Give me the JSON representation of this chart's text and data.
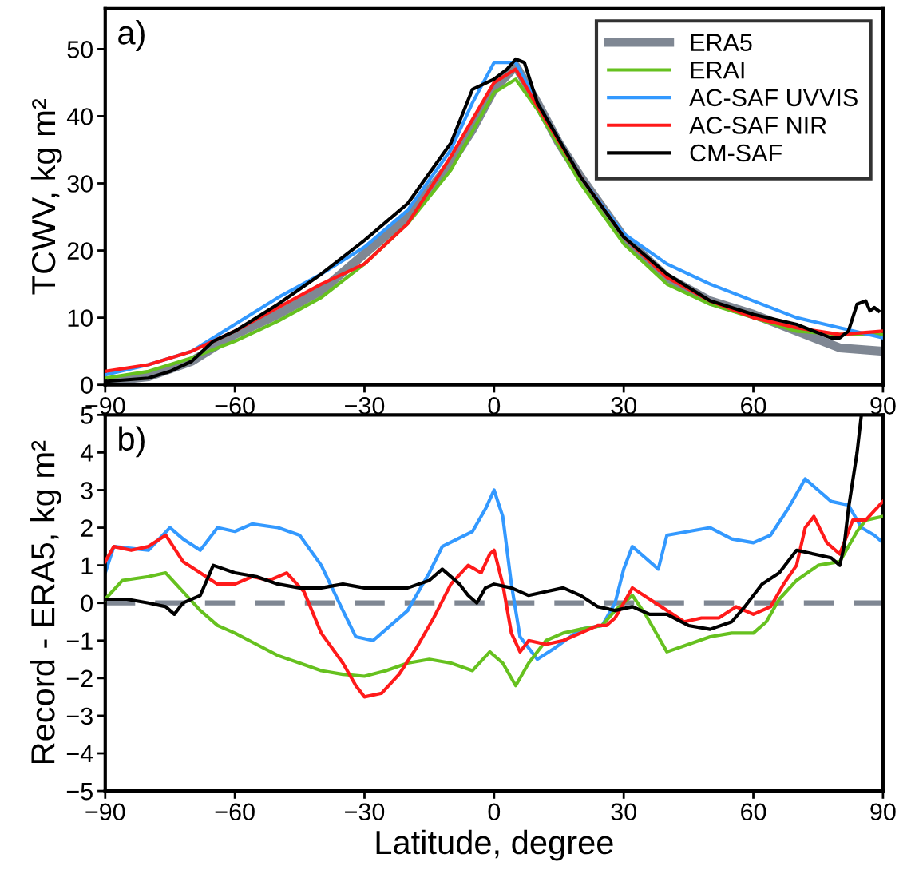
{
  "chart_data": [
    {
      "type": "line",
      "annotations": [
        "a)"
      ],
      "ylabel": "TCWV, kg m²",
      "xlim": [
        -90,
        90
      ],
      "xticks": [
        -90,
        -60,
        -30,
        0,
        30,
        60,
        90
      ],
      "ylim": [
        0,
        56
      ],
      "yticks": [
        0,
        10,
        20,
        30,
        40,
        50
      ],
      "grid": false,
      "legend": "top right",
      "line_style": "solid",
      "marker": "none",
      "series": [
        {
          "name": "ERA5",
          "color": "#7f8793",
          "x": [
            -90,
            -80,
            -70,
            -60,
            -50,
            -40,
            -30,
            -20,
            -10,
            -5,
            0,
            5,
            10,
            15,
            20,
            30,
            40,
            50,
            60,
            70,
            80,
            90
          ],
          "values": [
            0.5,
            1.2,
            3.5,
            7.5,
            10.5,
            14,
            19.5,
            25,
            33,
            38,
            44,
            47.5,
            42,
            36,
            31,
            22,
            16,
            12.5,
            10.5,
            8,
            5.5,
            5
          ]
        },
        {
          "name": "ERAI",
          "color": "#66c11f",
          "x": [
            -90,
            -80,
            -70,
            -60,
            -50,
            -40,
            -30,
            -20,
            -10,
            0,
            5,
            10,
            20,
            30,
            40,
            50,
            60,
            70,
            80,
            90
          ],
          "values": [
            1,
            2,
            4,
            6.5,
            9.5,
            13,
            18,
            24,
            32,
            43.5,
            45.5,
            41,
            30,
            21,
            15,
            12,
            10,
            8,
            7.5,
            7.5
          ]
        },
        {
          "name": "AC-SAF UVVIS",
          "color": "#3399ff",
          "x": [
            -90,
            -80,
            -70,
            -60,
            -50,
            -40,
            -30,
            -20,
            -10,
            -5,
            0,
            5,
            10,
            20,
            30,
            40,
            50,
            60,
            70,
            80,
            90
          ],
          "values": [
            1.5,
            3,
            5,
            9,
            13,
            16.5,
            20.5,
            26,
            35,
            42,
            48,
            48,
            42,
            31,
            22.5,
            18,
            15,
            12.5,
            10,
            8.5,
            7
          ]
        },
        {
          "name": "AC-SAF NIR",
          "color": "#ff1a1a",
          "x": [
            -90,
            -80,
            -70,
            -60,
            -50,
            -40,
            -30,
            -20,
            -10,
            0,
            5,
            10,
            20,
            30,
            40,
            50,
            60,
            70,
            80,
            90
          ],
          "values": [
            2,
            3,
            5,
            8,
            11.5,
            15,
            18,
            24,
            34,
            45,
            47,
            41.5,
            31,
            22,
            16,
            12.5,
            10,
            8.5,
            7.5,
            8
          ]
        },
        {
          "name": "CM-SAF",
          "color": "#000000",
          "x": [
            -90,
            -80,
            -75,
            -70,
            -65,
            -60,
            -50,
            -40,
            -30,
            -20,
            -10,
            -5,
            0,
            3,
            5,
            7,
            10,
            20,
            30,
            40,
            50,
            60,
            70,
            78,
            80,
            82,
            84,
            86,
            87,
            88,
            89
          ],
          "values": [
            0.5,
            1,
            2,
            3.5,
            6.5,
            8,
            12,
            16.5,
            21.5,
            27,
            36,
            44,
            45.5,
            47,
            48.5,
            48,
            42,
            31,
            22,
            16.5,
            12.5,
            10.5,
            9,
            7,
            7,
            8,
            12,
            12.5,
            11,
            11.5,
            11
          ]
        }
      ]
    },
    {
      "type": "line",
      "annotations": [
        "b)"
      ],
      "xlabel": "Latitude, degree",
      "ylabel": "Record - ERA5, kg m²",
      "xlim": [
        -90,
        90
      ],
      "xticks": [
        -90,
        -60,
        -30,
        0,
        30,
        60,
        90
      ],
      "ylim": [
        -5,
        5
      ],
      "yticks": [
        -5,
        -4,
        -3,
        -2,
        -1,
        0,
        1,
        2,
        3,
        4,
        5
      ],
      "grid": false,
      "line_style": "solid",
      "marker": "none",
      "ref_lines": [
        {
          "axis": "y",
          "value": 0,
          "color": "#7f8793",
          "line_style": "dashed"
        }
      ],
      "series": [
        {
          "color": "#3399ff",
          "x": [
            -90,
            -88,
            -80,
            -75,
            -72,
            -68,
            -64,
            -60,
            -56,
            -50,
            -45,
            -40,
            -35,
            -32,
            -28,
            -25,
            -20,
            -15,
            -12,
            -5,
            -2,
            0,
            2,
            4,
            6,
            10,
            14,
            20,
            25,
            28,
            30,
            32,
            35,
            38,
            40,
            45,
            50,
            55,
            60,
            64,
            68,
            72,
            75,
            78,
            82,
            85,
            88,
            90
          ],
          "values": [
            0.8,
            1.5,
            1.4,
            2,
            1.7,
            1.4,
            2,
            1.9,
            2.1,
            2,
            1.8,
            1,
            -0.2,
            -0.9,
            -1,
            -0.7,
            -0.2,
            0.8,
            1.5,
            1.9,
            2.5,
            3,
            2.3,
            0.5,
            -0.9,
            -1.5,
            -1.2,
            -0.7,
            -0.6,
            0,
            0.9,
            1.5,
            1.2,
            0.9,
            1.8,
            1.9,
            2,
            1.7,
            1.6,
            1.8,
            2.5,
            3.3,
            3,
            2.7,
            2.6,
            2,
            1.8,
            1.6
          ]
        },
        {
          "color": "#66c11f",
          "x": [
            -90,
            -86,
            -80,
            -76,
            -72,
            -68,
            -64,
            -60,
            -55,
            -50,
            -45,
            -40,
            -35,
            -30,
            -25,
            -20,
            -15,
            -10,
            -5,
            -1,
            2,
            5,
            8,
            12,
            16,
            20,
            25,
            28,
            32,
            35,
            38,
            40,
            45,
            50,
            55,
            60,
            63,
            66,
            70,
            75,
            80,
            84,
            86,
            90
          ],
          "values": [
            0.1,
            0.6,
            0.7,
            0.8,
            0.3,
            -0.2,
            -0.6,
            -0.8,
            -1.1,
            -1.4,
            -1.6,
            -1.8,
            -1.9,
            -1.95,
            -1.8,
            -1.6,
            -1.5,
            -1.6,
            -1.8,
            -1.3,
            -1.6,
            -2.2,
            -1.6,
            -1,
            -0.8,
            -0.7,
            -0.6,
            -0.2,
            0.2,
            -0.3,
            -0.9,
            -1.3,
            -1.1,
            -0.9,
            -0.8,
            -0.8,
            -0.5,
            0.1,
            0.6,
            1,
            1.1,
            1.9,
            2.2,
            2.3
          ]
        },
        {
          "color": "#ff1a1a",
          "x": [
            -90,
            -88,
            -84,
            -80,
            -76,
            -72,
            -68,
            -64,
            -60,
            -56,
            -52,
            -48,
            -44,
            -40,
            -35,
            -32,
            -30,
            -26,
            -22,
            -18,
            -14,
            -10,
            -6,
            -3,
            -1,
            0,
            2,
            4,
            6,
            8,
            12,
            16,
            20,
            24,
            26,
            28,
            30,
            32,
            36,
            40,
            44,
            48,
            52,
            56,
            60,
            64,
            67,
            70,
            72,
            74,
            77,
            80,
            83,
            86,
            90
          ],
          "values": [
            1.1,
            1.5,
            1.4,
            1.5,
            1.8,
            1.1,
            0.8,
            0.5,
            0.5,
            0.7,
            0.6,
            0.8,
            0.3,
            -0.8,
            -1.6,
            -2.2,
            -2.5,
            -2.4,
            -1.9,
            -1.2,
            -0.4,
            0.5,
            1,
            0.8,
            1.3,
            1.4,
            0.5,
            -0.8,
            -1.3,
            -1,
            -1.1,
            -1,
            -0.8,
            -0.6,
            -0.6,
            -0.4,
            0,
            0.4,
            0.1,
            -0.2,
            -0.5,
            -0.4,
            -0.4,
            -0.1,
            -0.3,
            -0.1,
            0.5,
            1,
            2,
            2.3,
            1.6,
            1.3,
            2.2,
            2.2,
            2.7
          ]
        },
        {
          "color": "#000000",
          "x": [
            -90,
            -85,
            -80,
            -76,
            -74,
            -72,
            -68,
            -65,
            -60,
            -55,
            -50,
            -45,
            -40,
            -35,
            -30,
            -25,
            -20,
            -15,
            -12,
            -8,
            -6,
            -4,
            -2,
            0,
            4,
            8,
            12,
            16,
            20,
            24,
            28,
            32,
            36,
            40,
            45,
            50,
            55,
            58,
            62,
            66,
            70,
            74,
            78,
            80,
            81,
            82,
            84,
            85
          ],
          "values": [
            0.1,
            0.1,
            0,
            -0.1,
            -0.3,
            0,
            0.2,
            1,
            0.8,
            0.7,
            0.5,
            0.4,
            0.4,
            0.5,
            0.4,
            0.4,
            0.4,
            0.6,
            0.9,
            0.5,
            0.2,
            0,
            0.4,
            0.5,
            0.4,
            0.2,
            0.3,
            0.4,
            0.2,
            -0.1,
            -0.2,
            -0.1,
            -0.3,
            -0.3,
            -0.6,
            -0.7,
            -0.5,
            -0.1,
            0.5,
            0.8,
            1.4,
            1.3,
            1.2,
            1,
            1.5,
            2.5,
            4,
            5
          ]
        }
      ]
    }
  ]
}
